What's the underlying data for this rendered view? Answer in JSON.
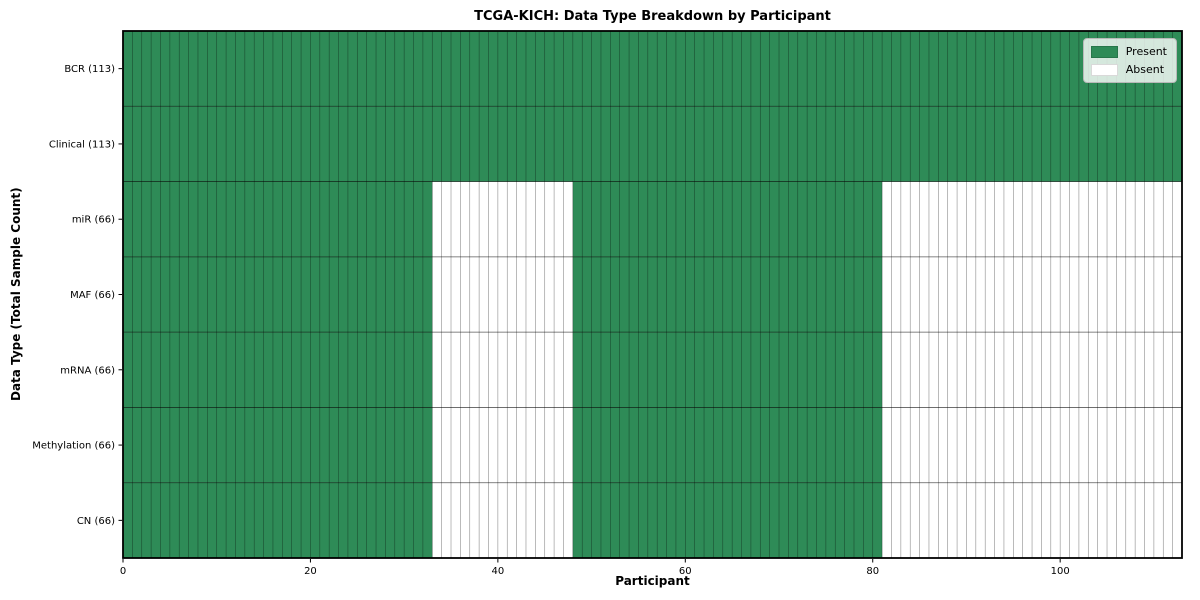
{
  "figure": {
    "title": "TCGA-KICH: Data Type Breakdown by Participant",
    "xlabel": "Participant",
    "ylabel": "Data Type (Total Sample Count)"
  },
  "legend": {
    "items": [
      {
        "label": "Present",
        "color": "#2e8b57"
      },
      {
        "label": "Absent",
        "color": "#ffffff"
      }
    ],
    "position": "upper right"
  },
  "chart_data": {
    "type": "heatmap",
    "title": "TCGA-KICH: Data Type Breakdown by Participant",
    "xlabel": "Participant",
    "ylabel": "Data Type (Total Sample Count)",
    "x_range": [
      0,
      113
    ],
    "x_ticks": [
      0,
      20,
      40,
      60,
      80,
      100
    ],
    "n_participants": 113,
    "rows": [
      {
        "label": "BCR (113)",
        "total_samples": 113,
        "present_ranges": [
          [
            0,
            113
          ]
        ]
      },
      {
        "label": "Clinical (113)",
        "total_samples": 113,
        "present_ranges": [
          [
            0,
            113
          ]
        ]
      },
      {
        "label": "miR (66)",
        "total_samples": 66,
        "present_ranges": [
          [
            0,
            33
          ],
          [
            48,
            81
          ]
        ]
      },
      {
        "label": "MAF (66)",
        "total_samples": 66,
        "present_ranges": [
          [
            0,
            33
          ],
          [
            48,
            81
          ]
        ]
      },
      {
        "label": "mRNA (66)",
        "total_samples": 66,
        "present_ranges": [
          [
            0,
            33
          ],
          [
            48,
            81
          ]
        ]
      },
      {
        "label": "Methylation (66)",
        "total_samples": 66,
        "present_ranges": [
          [
            0,
            33
          ],
          [
            48,
            81
          ]
        ]
      },
      {
        "label": "CN (66)",
        "total_samples": 66,
        "present_ranges": [
          [
            0,
            33
          ],
          [
            48,
            81
          ]
        ]
      }
    ],
    "colors": {
      "present": "#2e8b57",
      "absent": "#ffffff",
      "grid_line": "#000000",
      "frame": "#000000",
      "tick_text": "#000000"
    },
    "legend_entries": [
      "Present",
      "Absent"
    ],
    "legend_position": "upper right",
    "grid": true
  }
}
